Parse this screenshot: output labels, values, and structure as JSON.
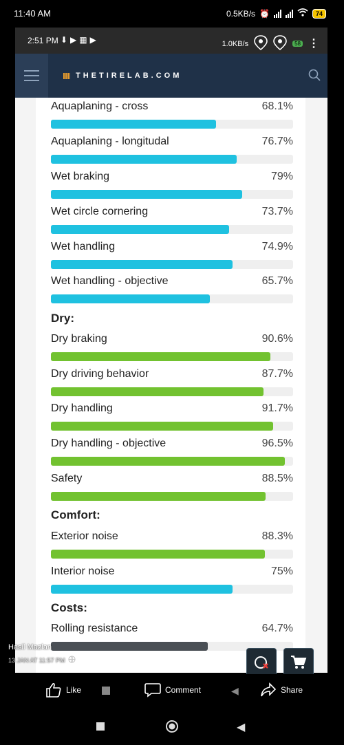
{
  "outer_status": {
    "time": "11:40 AM",
    "speed": "0.5KB/s",
    "battery": "74"
  },
  "inner_status": {
    "time": "2:51 PM",
    "speed": "1.0KB/s",
    "battery": "58"
  },
  "header": {
    "logo_text": "THETIRELAB.COM"
  },
  "colors": {
    "blue": "#1fc1e0",
    "green": "#72c230",
    "gray": "#4a4f55",
    "header": "#1f3148"
  },
  "metrics": [
    {
      "label": "Aquaplaning - cross",
      "value": "68.1%",
      "fraction": 0.681,
      "color": "blue"
    },
    {
      "label": "Aquaplaning - longitudal",
      "value": "76.7%",
      "fraction": 0.767,
      "color": "blue"
    },
    {
      "label": "Wet braking",
      "value": "79%",
      "fraction": 0.79,
      "color": "blue"
    },
    {
      "label": "Wet circle cornering",
      "value": "73.7%",
      "fraction": 0.737,
      "color": "blue"
    },
    {
      "label": "Wet handling",
      "value": "74.9%",
      "fraction": 0.749,
      "color": "blue"
    },
    {
      "label": "Wet handling - objective",
      "value": "65.7%",
      "fraction": 0.657,
      "color": "blue"
    },
    {
      "label": "Dry braking",
      "value": "90.6%",
      "fraction": 0.906,
      "color": "green"
    },
    {
      "label": "Dry driving behavior",
      "value": "87.7%",
      "fraction": 0.877,
      "color": "green"
    },
    {
      "label": "Dry handling",
      "value": "91.7%",
      "fraction": 0.917,
      "color": "green"
    },
    {
      "label": "Dry handling - objective",
      "value": "96.5%",
      "fraction": 0.965,
      "color": "green"
    },
    {
      "label": "Safety",
      "value": "88.5%",
      "fraction": 0.885,
      "color": "green"
    },
    {
      "label": "Exterior noise",
      "value": "88.3%",
      "fraction": 0.883,
      "color": "green"
    },
    {
      "label": "Interior noise",
      "value": "75%",
      "fraction": 0.75,
      "color": "blue"
    },
    {
      "label": "Rolling resistance",
      "value": "64.7%",
      "fraction": 0.647,
      "color": "gray"
    }
  ],
  "sections": {
    "dry": "Dry:",
    "comfort": "Comfort:",
    "costs": "Costs:"
  },
  "post": {
    "author": "Hasil Mazlan",
    "date": "13 JAN AT 11:57 PM"
  },
  "actions": {
    "like": "Like",
    "comment": "Comment",
    "share": "Share"
  }
}
